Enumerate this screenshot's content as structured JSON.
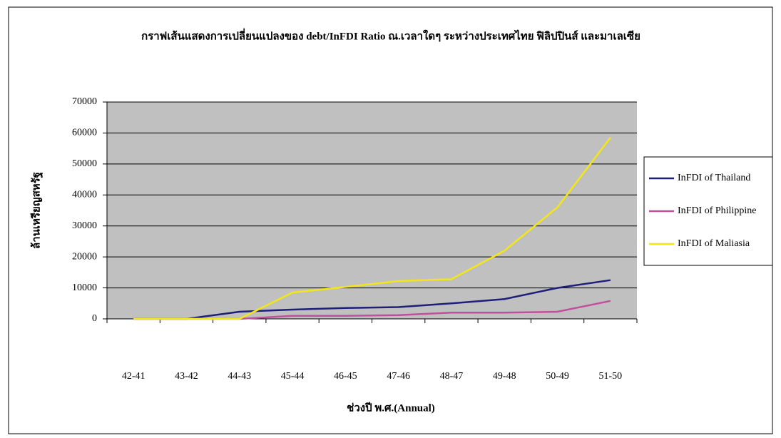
{
  "chart_data": {
    "type": "line",
    "title": "กราฟเส้นแสดงการเปลี่ยนแปลงของ debt/InFDI Ratio ณ.เวลาใดๆ ระหว่างประเทศไทย ฟิลิปปินส์ และมาเลเซีย",
    "x_label": "ช่วงปี พ.ศ.(Annual)",
    "y_label": "ล้านเหรียญสหรัฐ",
    "categories": [
      "42-41",
      "43-42",
      "44-43",
      "45-44",
      "46-45",
      "47-46",
      "48-47",
      "49-48",
      "50-49",
      "51-50"
    ],
    "series": [
      {
        "name": "InFDI of Thailand",
        "color": "#1f1f7a",
        "values": [
          0,
          0,
          2300,
          3000,
          3500,
          3800,
          5000,
          6400,
          10000,
          12500
        ]
      },
      {
        "name": "InFDI of Philippine",
        "color": "#c0509b",
        "values": [
          0,
          0,
          0,
          1000,
          1000,
          1200,
          2000,
          2000,
          2300,
          5800
        ]
      },
      {
        "name": "InFDI of Maliasia",
        "color": "#f2e619",
        "values": [
          0,
          0,
          0,
          8500,
          10300,
          12200,
          12800,
          22000,
          36000,
          58500
        ]
      }
    ],
    "ylim": [
      0,
      70000
    ],
    "yticks": [
      0,
      10000,
      20000,
      30000,
      40000,
      50000,
      60000,
      70000
    ],
    "grid": true,
    "legend": "right",
    "plot_background": "#c0c0c0"
  }
}
